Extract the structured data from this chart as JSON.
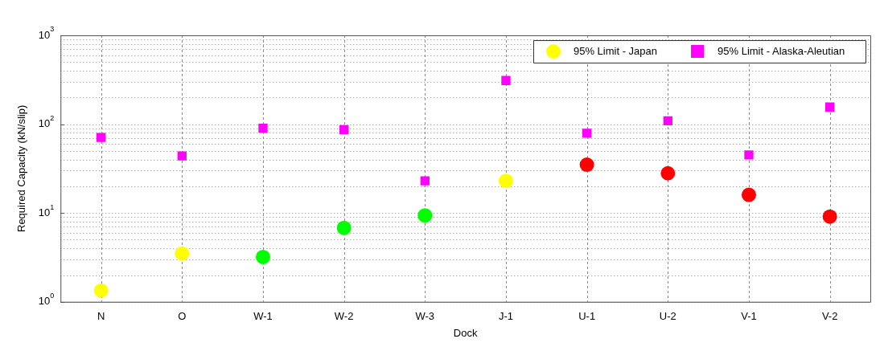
{
  "chart_data": {
    "type": "scatter",
    "xlabel": "Dock",
    "ylabel": "Required Capacity (kN/slip)",
    "categories": [
      "N",
      "O",
      "W-1",
      "W-2",
      "W-3",
      "J-1",
      "U-1",
      "U-2",
      "V-1",
      "V-2"
    ],
    "series": [
      {
        "name": "95% Limit - Japan",
        "color": "#ffff00",
        "marker": "circle",
        "values": [
          1.34,
          3.5,
          3.2,
          6.8,
          9.4,
          23,
          35,
          28,
          16,
          9.1
        ],
        "colors": [
          "#ffff00",
          "#ffff00",
          "#00ff00",
          "#00ff00",
          "#00ff00",
          "#ffff00",
          "#ff0000",
          "#ff0000",
          "#ff0000",
          "#ff0000"
        ]
      },
      {
        "name": "95% Limit - Alaska-Aleutian",
        "color": "#ff00ff",
        "marker": "square",
        "values": [
          71,
          44,
          90,
          87,
          23,
          310,
          79,
          109,
          45,
          156
        ]
      }
    ],
    "log": "y",
    "ylim": [
      1,
      1000
    ],
    "yticks": [
      {
        "value": 1,
        "label": "10$^{0}$"
      },
      {
        "value": 10,
        "label": "10$^{1}$"
      },
      {
        "value": 100,
        "label": "10$^{2}$"
      },
      {
        "value": 1000,
        "label": "10$^{3}$"
      }
    ],
    "grid": true,
    "legend": "top right"
  }
}
